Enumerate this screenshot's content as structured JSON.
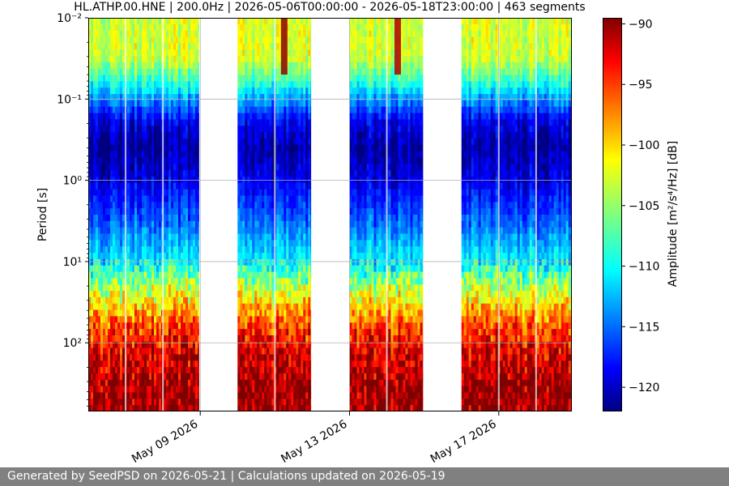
{
  "chart_data": {
    "type": "heatmap",
    "title": "HL.ATHP.00.HNE | 200.0Hz | 2026-05-06T00:00:00 - 2026-05-18T23:00:00 | 463 segments",
    "ylabel": "Period [s]",
    "colorbar_label": "Amplitude [m²/s⁴/Hz] [dB]",
    "colormap": "jet",
    "y_scale": "log",
    "y_inverted": true,
    "y_range": [
      0.01,
      700
    ],
    "y_ticks": [
      0.01,
      0.1,
      1,
      10,
      100
    ],
    "y_tick_labels": [
      "10⁻²",
      "10⁻¹",
      "10⁰",
      "10¹",
      "10²"
    ],
    "x_range": [
      "2026-05-06T00:00:00",
      "2026-05-18T23:00:00"
    ],
    "x_ticks": [
      "2026-05-09",
      "2026-05-13",
      "2026-05-17"
    ],
    "x_tick_labels": [
      "May 09 2026",
      "May 13 2026",
      "May 17 2026"
    ],
    "grid": true,
    "color_range_db": [
      -122,
      -89.5
    ],
    "colorbar_ticks": [
      -90,
      -95,
      -100,
      -105,
      -110,
      -115,
      -120
    ],
    "colorbar_tick_labels": [
      "−90",
      "−95",
      "−100",
      "−105",
      "−110",
      "−115",
      "−120"
    ],
    "data_blocks": [
      {
        "start": "2026-05-06T00:00:00",
        "end": "2026-05-08T23:00:00"
      },
      {
        "start": "2026-05-10T00:00:00",
        "end": "2026-05-11T23:00:00"
      },
      {
        "start": "2026-05-13T00:00:00",
        "end": "2026-05-14T23:00:00"
      },
      {
        "start": "2026-05-16T00:00:00",
        "end": "2026-05-18T23:00:00"
      }
    ],
    "night_gaps": [
      "2026-05-07",
      "2026-05-08",
      "2026-05-11",
      "2026-05-14",
      "2026-05-17",
      "2026-05-18"
    ],
    "amplitude_profile": [
      {
        "period": 0.01,
        "db": -103
      },
      {
        "period": 0.03,
        "db": -103
      },
      {
        "period": 0.06,
        "db": -108
      },
      {
        "period": 0.1,
        "db": -113
      },
      {
        "period": 0.2,
        "db": -119
      },
      {
        "period": 0.4,
        "db": -121
      },
      {
        "period": 1,
        "db": -119
      },
      {
        "period": 3,
        "db": -115
      },
      {
        "period": 10,
        "db": -110
      },
      {
        "period": 30,
        "db": -101
      },
      {
        "period": 60,
        "db": -96
      },
      {
        "period": 150,
        "db": -92
      },
      {
        "period": 400,
        "db": -90
      }
    ],
    "transients": [
      {
        "time": "2026-05-11T06:00:00",
        "period_range": [
          0.01,
          0.05
        ],
        "db": -90
      },
      {
        "time": "2026-05-14T07:00:00",
        "period_range": [
          0.01,
          0.05
        ],
        "db": -91
      }
    ]
  },
  "footer": "Generated by SeedPSD on 2026-05-21 | Calculations updated on 2026-05-19"
}
